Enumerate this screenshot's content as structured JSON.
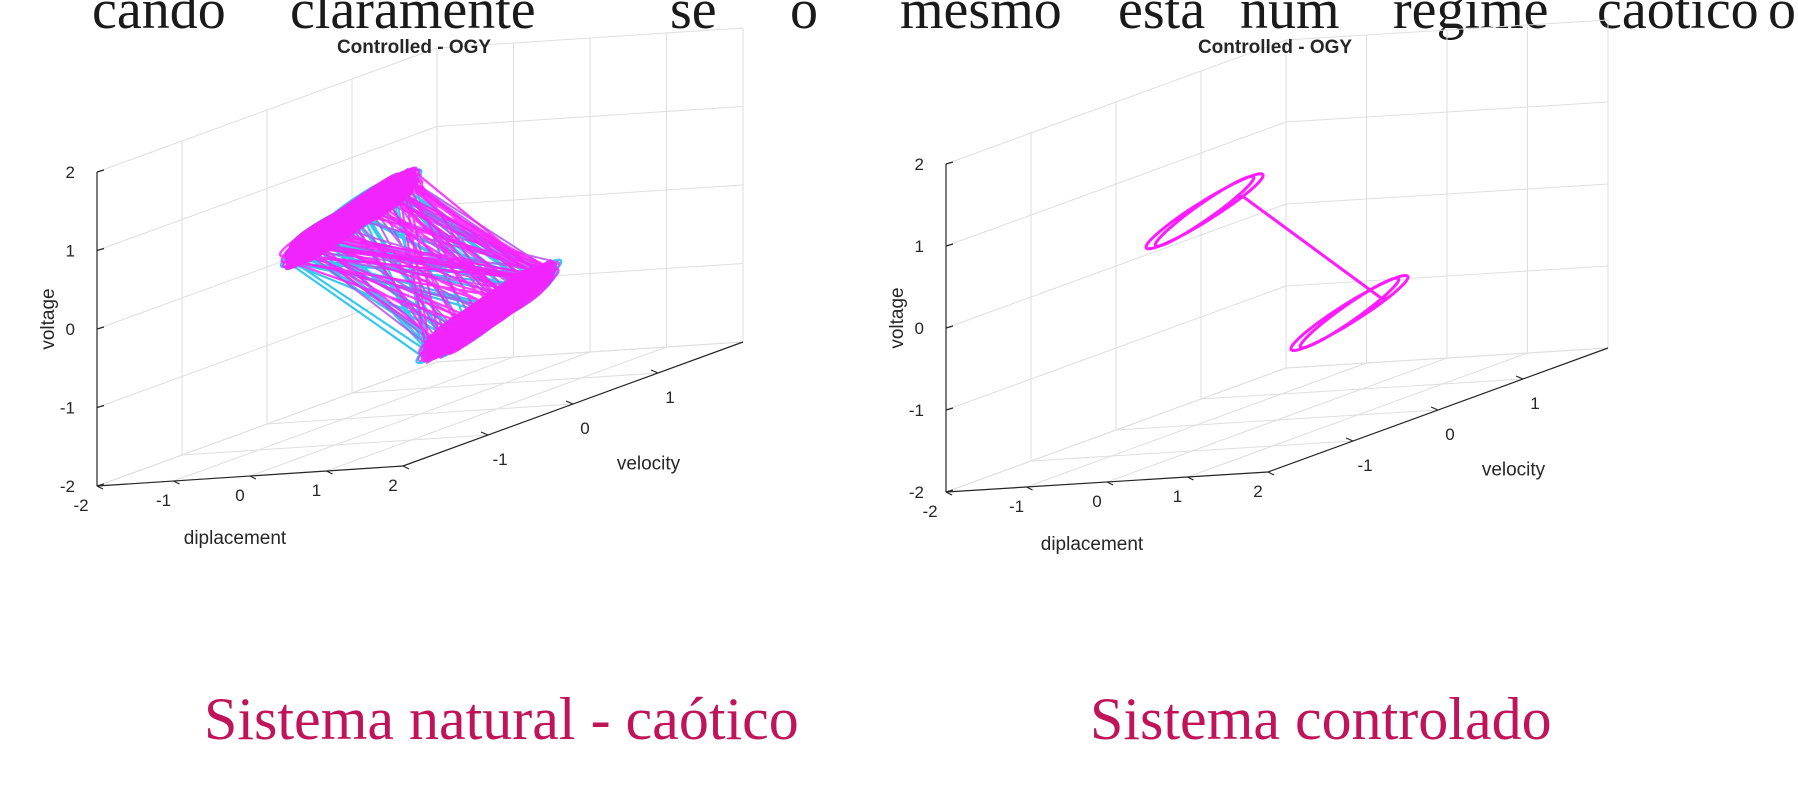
{
  "header_text": {
    "words": [
      "cando",
      "claramente",
      "se",
      "o",
      "mesmo",
      "está",
      "num",
      "regime",
      "caótico",
      "o"
    ]
  },
  "captions": {
    "left": "Sistema natural - caótico",
    "right": "Sistema controlado"
  },
  "colors": {
    "caption": "#c0135a",
    "series_cyan": "#35c8ef",
    "series_magenta": "#ff1aff",
    "series_violet": "#b450f0",
    "grid": "#dedede",
    "axis": "#262626"
  },
  "chart_data": [
    {
      "type": "line3d",
      "title": "Controlled - OGY",
      "xlabel": "diplacement",
      "ylabel": "velocity",
      "zlabel": "voltage",
      "xlim": [
        -2,
        2
      ],
      "ylim": [
        -2,
        2
      ],
      "zlim": [
        -2,
        2
      ],
      "xticks": [
        "-2",
        "-1",
        "0",
        "1",
        "2"
      ],
      "yticks": [
        "-1",
        "0",
        "1"
      ],
      "zticks": [
        "-2",
        "-1",
        "0",
        "1",
        "2"
      ],
      "grid": true,
      "description_series": "double-scroll chaotic attractor (many overlapping trajectories)",
      "series": [
        {
          "color_key": "series_cyan",
          "regime": "chaotic",
          "lobes": [
            {
              "center": [
                -0.9,
                0.0,
                0.55
              ],
              "amplitude": [
                0.55,
                0.6,
                0.35
              ]
            },
            {
              "center": [
                0.9,
                0.0,
                -0.75
              ],
              "amplitude": [
                0.55,
                0.6,
                0.35
              ]
            }
          ]
        },
        {
          "color_key": "series_magenta",
          "regime": "chaotic"
        }
      ]
    },
    {
      "type": "line3d",
      "title": "Controlled - OGY",
      "xlabel": "diplacement",
      "ylabel": "velocity",
      "zlabel": "voltage",
      "xlim": [
        -2,
        2
      ],
      "ylim": [
        -2,
        2
      ],
      "zlim": [
        -2,
        2
      ],
      "xticks": [
        "-2",
        "-1",
        "0",
        "1",
        "2"
      ],
      "yticks": [
        "-1",
        "0",
        "1"
      ],
      "zticks": [
        "-2",
        "-1",
        "0",
        "1",
        "2"
      ],
      "grid": true,
      "series": [
        {
          "color_key": "series_magenta",
          "regime": "stabilized periodic orbit",
          "lobes": [
            {
              "center": [
                -0.9,
                0.0,
                0.6
              ],
              "amplitude": [
                0.5,
                0.55,
                0.3
              ]
            },
            {
              "center": [
                0.9,
                0.0,
                -0.75
              ],
              "amplitude": [
                0.5,
                0.55,
                0.3
              ]
            }
          ]
        }
      ]
    }
  ]
}
